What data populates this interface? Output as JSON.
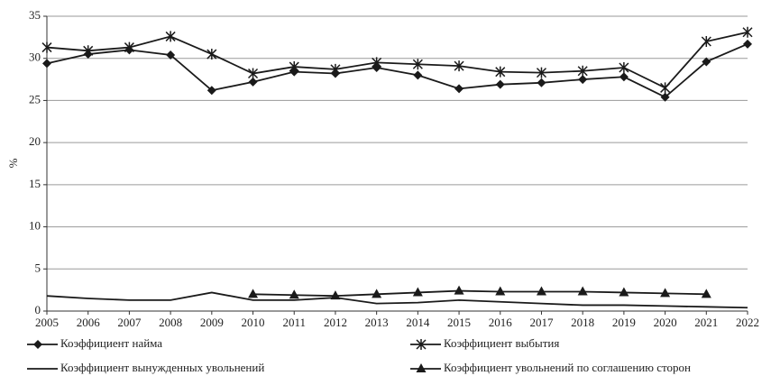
{
  "chart_data": {
    "type": "line",
    "y_label": "%",
    "x": [
      2005,
      2006,
      2007,
      2008,
      2009,
      2010,
      2011,
      2012,
      2013,
      2014,
      2015,
      2016,
      2017,
      2018,
      2019,
      2020,
      2021,
      2022
    ],
    "xlim": [
      2005,
      2022
    ],
    "xticks": [
      2005,
      2006,
      2007,
      2008,
      2009,
      2010,
      2011,
      2012,
      2013,
      2014,
      2015,
      2016,
      2017,
      2018,
      2019,
      2020,
      2021,
      2022
    ],
    "ylim": [
      0,
      35
    ],
    "yticks": [
      0,
      5,
      10,
      15,
      20,
      25,
      30,
      35
    ],
    "grid": true,
    "legend": "bottom",
    "series": [
      {
        "name": "Коэффициент найма",
        "color": "#1a1a1a",
        "marker": "diamond",
        "values": [
          29.4,
          30.5,
          31.0,
          30.4,
          26.2,
          27.2,
          28.4,
          28.2,
          28.9,
          28.0,
          26.4,
          26.9,
          27.1,
          27.5,
          27.8,
          25.4,
          29.6,
          31.7
        ]
      },
      {
        "name": "Коэффициент выбытия",
        "color": "#1a1a1a",
        "marker": "star",
        "values": [
          31.3,
          30.9,
          31.3,
          32.6,
          30.5,
          28.2,
          29.0,
          28.7,
          29.5,
          29.3,
          29.1,
          28.4,
          28.3,
          28.5,
          28.9,
          26.5,
          32.0,
          33.1
        ]
      },
      {
        "name": "Коэффициент вынужденных увольнений",
        "color": "#1a1a1a",
        "marker": "none",
        "values": [
          1.8,
          1.5,
          1.3,
          1.3,
          2.2,
          1.3,
          1.3,
          1.6,
          0.9,
          1.0,
          1.3,
          1.1,
          0.9,
          0.7,
          0.7,
          0.6,
          0.5,
          0.4
        ]
      },
      {
        "name": "Коэффициент увольнений по соглашению сторон",
        "color": "#1a1a1a",
        "marker": "triangle",
        "values": [
          null,
          null,
          null,
          null,
          null,
          2.0,
          1.9,
          1.8,
          2.0,
          2.2,
          2.4,
          2.3,
          2.3,
          2.3,
          2.2,
          2.1,
          2.0,
          null
        ]
      }
    ]
  }
}
